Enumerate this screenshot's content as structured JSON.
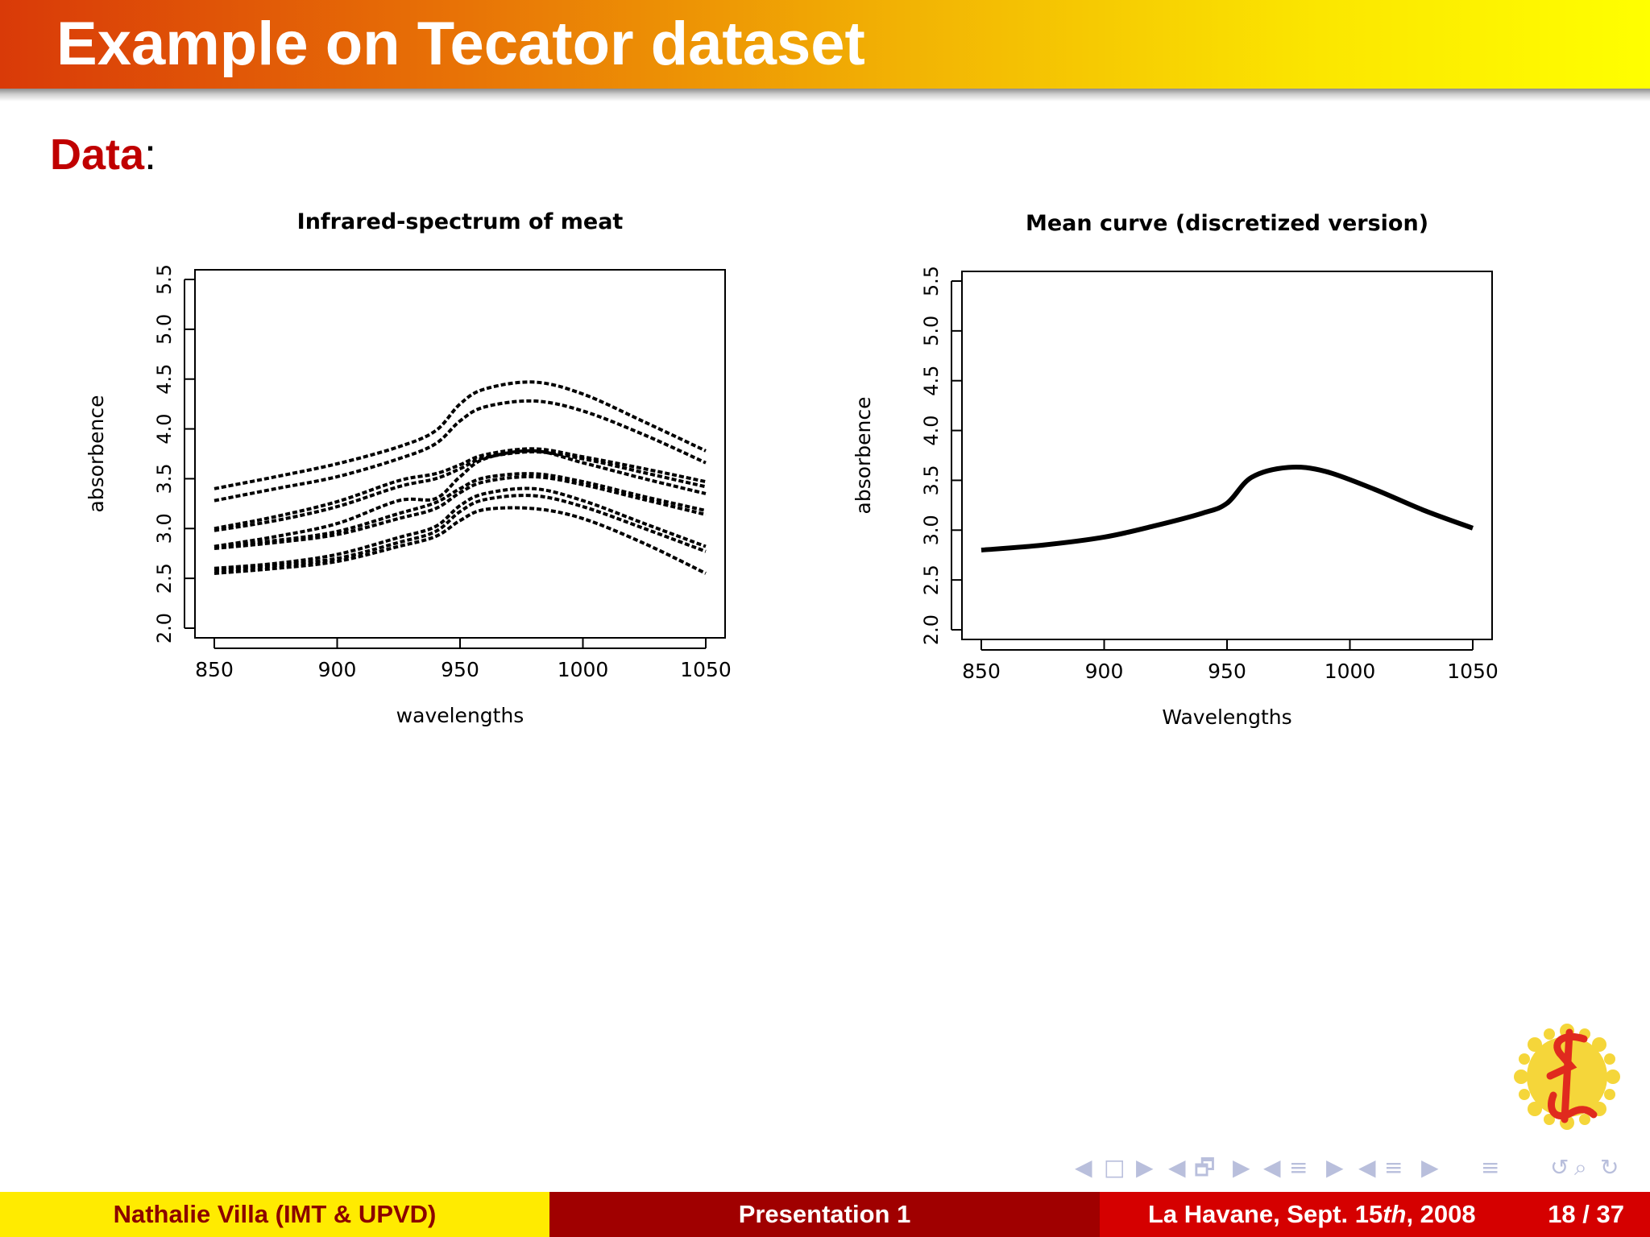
{
  "slide": {
    "title": "Example on Tecator dataset",
    "heading_keyword": "Data",
    "heading_colon": ":"
  },
  "footer": {
    "author": "Nathalie Villa  (IMT & UPVD)",
    "presentation": "Presentation 1",
    "venue_prefix": "La Havane, Sept. 15",
    "venue_suffix_italic": "th",
    "venue_year": ", 2008",
    "page": "18 / 37"
  },
  "nav": {
    "glyphs": [
      "◀",
      "□",
      "▶",
      "◀",
      "🗗",
      "▶",
      "◀",
      "≡",
      "▶",
      "◀",
      "≡",
      "▶",
      "≡",
      "↺",
      "⌕",
      "↻"
    ]
  },
  "colors": {
    "title_bar_start": "#d93a08",
    "title_bar_end": "#ffff00",
    "heading_keyword": "#c00000",
    "footer_left_bg": "#ffeb00",
    "footer_left_text": "#8b0000",
    "footer_mid_bg": "#a00000",
    "footer_right_bg": "#d50000",
    "nav_symbols": "#b9bfdc"
  },
  "logo": {
    "icon": "university-logo-icon"
  },
  "chart_data": [
    {
      "type": "line",
      "title": "Infrared-spectrum of meat",
      "xlabel": "wavelengths",
      "ylabel": "absorbence",
      "xlim": [
        850,
        1050
      ],
      "ylim": [
        2.0,
        5.5
      ],
      "xticks": [
        850,
        900,
        950,
        1000,
        1050
      ],
      "yticks": [
        2.0,
        2.5,
        3.0,
        3.5,
        4.0,
        4.5,
        5.0,
        5.5
      ],
      "line_style": "dashed",
      "x": [
        850,
        875,
        900,
        925,
        940,
        950,
        960,
        980,
        1000,
        1025,
        1050
      ],
      "series": [
        {
          "values": [
            3.4,
            3.52,
            3.65,
            3.82,
            3.98,
            4.25,
            4.4,
            4.47,
            4.35,
            4.07,
            3.78
          ]
        },
        {
          "values": [
            3.28,
            3.4,
            3.52,
            3.7,
            3.85,
            4.08,
            4.22,
            4.28,
            4.18,
            3.94,
            3.66
          ]
        },
        {
          "values": [
            3.0,
            3.12,
            3.27,
            3.48,
            3.55,
            3.64,
            3.74,
            3.8,
            3.72,
            3.6,
            3.47
          ]
        },
        {
          "values": [
            2.98,
            3.08,
            3.22,
            3.42,
            3.5,
            3.6,
            3.71,
            3.77,
            3.7,
            3.56,
            3.42
          ]
        },
        {
          "values": [
            2.82,
            2.92,
            3.05,
            3.28,
            3.3,
            3.52,
            3.7,
            3.78,
            3.66,
            3.5,
            3.35
          ]
        },
        {
          "values": [
            2.82,
            2.88,
            2.97,
            3.15,
            3.26,
            3.4,
            3.51,
            3.55,
            3.47,
            3.32,
            3.18
          ]
        },
        {
          "values": [
            2.8,
            2.86,
            2.94,
            3.1,
            3.2,
            3.36,
            3.47,
            3.52,
            3.44,
            3.29,
            3.14
          ]
        },
        {
          "values": [
            2.6,
            2.65,
            2.74,
            2.91,
            3.02,
            3.23,
            3.35,
            3.4,
            3.28,
            3.05,
            2.82
          ]
        },
        {
          "values": [
            2.58,
            2.63,
            2.7,
            2.86,
            2.97,
            3.17,
            3.29,
            3.33,
            3.22,
            3.0,
            2.77
          ]
        },
        {
          "values": [
            2.55,
            2.6,
            2.67,
            2.82,
            2.92,
            3.08,
            3.19,
            3.2,
            3.1,
            2.85,
            2.55
          ]
        }
      ]
    },
    {
      "type": "line",
      "title": "Mean curve (discretized version)",
      "xlabel": "Wavelengths",
      "ylabel": "absorbence",
      "xlim": [
        850,
        1050
      ],
      "ylim": [
        2.0,
        5.5
      ],
      "xticks": [
        850,
        900,
        950,
        1000,
        1050
      ],
      "yticks": [
        2.0,
        2.5,
        3.0,
        3.5,
        4.0,
        4.5,
        5.0,
        5.5
      ],
      "line_style": "solid",
      "x": [
        850,
        875,
        900,
        920,
        940,
        950,
        960,
        975,
        990,
        1010,
        1030,
        1050
      ],
      "series": [
        {
          "values": [
            2.8,
            2.85,
            2.93,
            3.04,
            3.17,
            3.27,
            3.53,
            3.63,
            3.59,
            3.41,
            3.2,
            3.02
          ]
        }
      ]
    }
  ]
}
